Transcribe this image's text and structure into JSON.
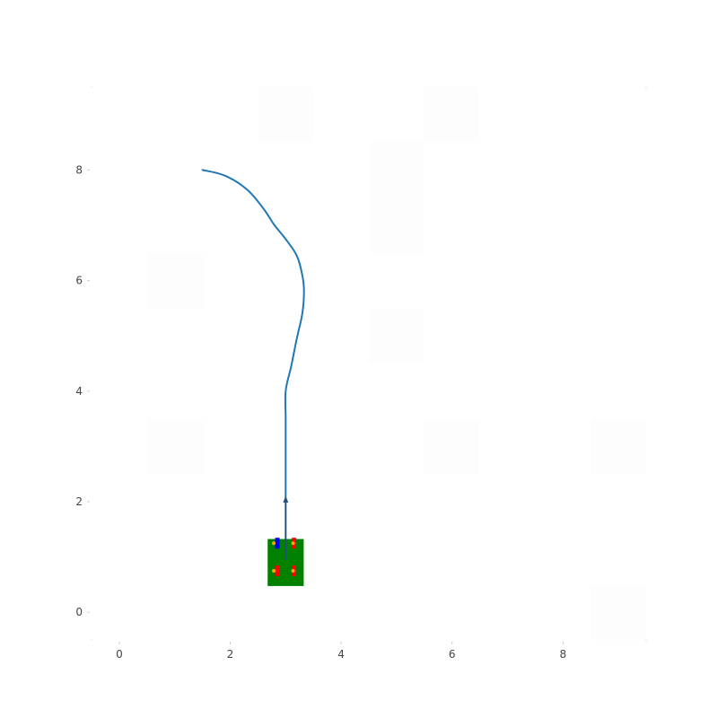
{
  "chart_data": {
    "type": "line",
    "title": "",
    "xlabel": "",
    "ylabel": "",
    "xlim": [
      -0.5,
      9.5
    ],
    "ylim": [
      -0.5,
      9.5
    ],
    "x_ticks": [
      0,
      2,
      4,
      6,
      8
    ],
    "x_tick_labels": [
      "0",
      "2",
      "4",
      "6",
      "8"
    ],
    "y_ticks": [
      0,
      2,
      4,
      6,
      8
    ],
    "y_tick_labels": [
      "0",
      "2",
      "4",
      "6",
      "8"
    ],
    "grid": false,
    "series": [
      {
        "color": "#1f77b4",
        "x": [
          1.5,
          1.9,
          2.3,
          2.6,
          2.8,
          3.0,
          3.2,
          3.3,
          3.33,
          3.3,
          3.2,
          3.1,
          3.0,
          3.0,
          3.0,
          3.0,
          3.0
        ],
        "y": [
          8.0,
          7.9,
          7.65,
          7.3,
          7.0,
          6.75,
          6.45,
          6.1,
          5.8,
          5.4,
          4.95,
          4.45,
          4.0,
          3.5,
          2.8,
          2.2,
          1.0
        ]
      }
    ],
    "obstacles": [
      {
        "x0": 2.5,
        "x1": 3.5,
        "y0": 8.5,
        "y1": 9.5
      },
      {
        "x0": 5.5,
        "x1": 6.5,
        "y0": 8.5,
        "y1": 9.5
      },
      {
        "x0": 4.5,
        "x1": 5.5,
        "y0": 6.5,
        "y1": 8.5
      },
      {
        "x0": 0.5,
        "x1": 1.5,
        "y0": 5.5,
        "y1": 6.5
      },
      {
        "x0": 4.5,
        "x1": 5.5,
        "y0": 4.5,
        "y1": 5.5
      },
      {
        "x0": 0.5,
        "x1": 1.5,
        "y0": 2.5,
        "y1": 3.5
      },
      {
        "x0": 5.5,
        "x1": 6.5,
        "y0": 2.5,
        "y1": 3.5
      },
      {
        "x0": 8.5,
        "x1": 9.5,
        "y0": 2.5,
        "y1": 3.5
      },
      {
        "x0": 8.5,
        "x1": 9.5,
        "y0": -0.5,
        "y1": 0.5
      }
    ],
    "robot": {
      "center_x": 3.0,
      "center_y": 1.0,
      "width": 0.65,
      "height": 0.85,
      "heading_deg": 90,
      "body_color": "#008000",
      "wheel_color": "#ff0000",
      "front_left_wheel_color": "#0000ff",
      "marker_color": "#ffa500",
      "arrow_tip_y": 2.1,
      "arrow_color": "#1f4e79"
    }
  }
}
